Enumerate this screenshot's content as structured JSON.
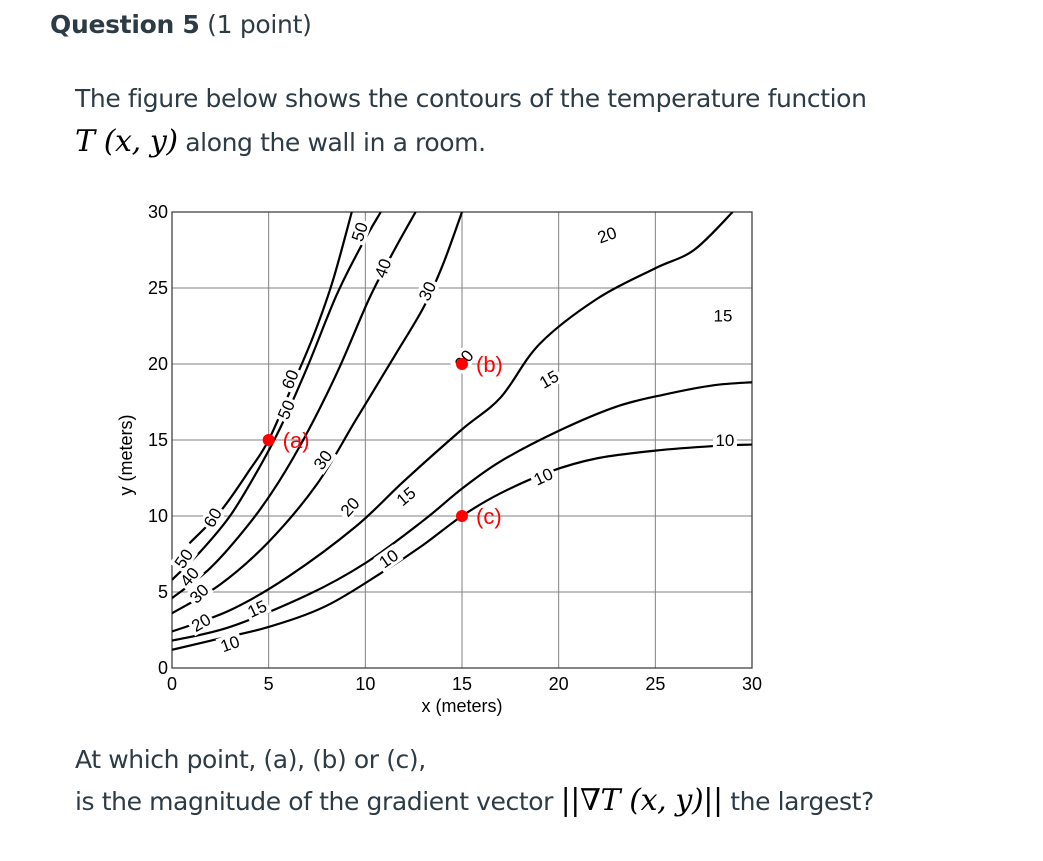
{
  "question": {
    "number_label": "Question 5",
    "points_label": "(1 point)"
  },
  "intro": {
    "line1": "The figure below shows the contours of the temperature function",
    "math_function": "T (x, y)",
    "line2_rest": "along the wall in a room."
  },
  "prompt": {
    "line1": "At which point, (a), (b) or (c),",
    "line2_start": "is the magnitude of the gradient vector",
    "math_gradient": "||∇T (x, y)||",
    "line2_end": "the largest?"
  },
  "chart_data": {
    "type": "contour",
    "title": "",
    "xlabel": "x (meters)",
    "ylabel": "y (meters)",
    "xlim": [
      0,
      30
    ],
    "ylim": [
      0,
      30
    ],
    "xticks": [
      "0",
      "5",
      "10",
      "15",
      "20",
      "25",
      "30"
    ],
    "yticks": [
      "0",
      "5",
      "10",
      "15",
      "20",
      "25",
      "30"
    ],
    "grid": true,
    "contours": [
      {
        "level": 60,
        "label": "60",
        "points": [
          [
            0.9,
            8.2
          ],
          [
            2.5,
            10.3
          ],
          [
            4,
            13
          ],
          [
            5,
            15
          ],
          [
            6.2,
            18.5
          ],
          [
            7.3,
            21.8
          ],
          [
            8.3,
            25.4
          ],
          [
            9.3,
            30
          ]
        ]
      },
      {
        "level": 50,
        "label": "50",
        "points": [
          [
            0,
            5.8
          ],
          [
            1.5,
            7.7
          ],
          [
            3,
            10
          ],
          [
            4.3,
            12.7
          ],
          [
            5.6,
            15.8
          ],
          [
            7,
            19.8
          ],
          [
            8.5,
            24.5
          ],
          [
            9.8,
            27.8
          ],
          [
            10.8,
            30
          ]
        ]
      },
      {
        "level": 40,
        "label": "40",
        "points": [
          [
            0,
            4.6
          ],
          [
            2,
            6.6
          ],
          [
            4,
            9.5
          ],
          [
            5.5,
            12.2
          ],
          [
            7,
            15.5
          ],
          [
            8.6,
            19.6
          ],
          [
            10.2,
            24.3
          ],
          [
            11.5,
            27.5
          ],
          [
            12.6,
            30
          ]
        ]
      },
      {
        "level": 30,
        "label": "30",
        "points": [
          [
            0,
            3.6
          ],
          [
            2.5,
            5.5
          ],
          [
            5,
            8.3
          ],
          [
            7.5,
            12.1
          ],
          [
            9.5,
            16.3
          ],
          [
            11.5,
            20.5
          ],
          [
            13,
            23.7
          ],
          [
            14,
            26.5
          ],
          [
            15,
            30
          ]
        ]
      },
      {
        "level": 20,
        "label": "20",
        "points": [
          [
            0,
            2.4
          ],
          [
            3,
            3.8
          ],
          [
            6,
            6
          ],
          [
            9.5,
            9.3
          ],
          [
            12,
            12.3
          ],
          [
            15,
            15.7
          ],
          [
            17,
            17.8
          ],
          [
            19,
            21.3
          ],
          [
            22,
            24.3
          ],
          [
            25,
            26.3
          ],
          [
            27,
            27.5
          ],
          [
            29,
            30
          ]
        ]
      },
      {
        "level": 15,
        "label": "15",
        "points": [
          [
            0,
            1.8
          ],
          [
            3,
            2.7
          ],
          [
            7,
            4.8
          ],
          [
            10,
            6.9
          ],
          [
            13,
            9.7
          ],
          [
            15,
            11.8
          ],
          [
            17,
            13.6
          ],
          [
            20,
            15.6
          ],
          [
            23,
            17.2
          ],
          [
            25.5,
            18
          ],
          [
            28,
            18.6
          ],
          [
            30,
            18.8
          ]
        ]
      },
      {
        "level": 10,
        "label": "10",
        "points": [
          [
            0,
            1.2
          ],
          [
            2,
            1.8
          ],
          [
            5,
            2.7
          ],
          [
            8,
            4.1
          ],
          [
            11,
            6.4
          ],
          [
            13,
            8.1
          ],
          [
            15,
            10
          ],
          [
            17,
            11.5
          ],
          [
            19.5,
            12.9
          ],
          [
            22,
            13.8
          ],
          [
            25,
            14.3
          ],
          [
            28,
            14.6
          ],
          [
            30,
            14.7
          ]
        ]
      }
    ],
    "points": [
      {
        "label": "(a)",
        "x": 5,
        "y": 15,
        "color": "#ff0000"
      },
      {
        "label": "(b)",
        "x": 15,
        "y": 20,
        "color": "#ff0000"
      },
      {
        "label": "(c)",
        "x": 15,
        "y": 10,
        "color": "#ff0000"
      }
    ]
  },
  "colors": {
    "text": "#2d3b45",
    "point_marker": "#ff0000",
    "contour_line": "#000000",
    "grid_line": "#808080"
  }
}
